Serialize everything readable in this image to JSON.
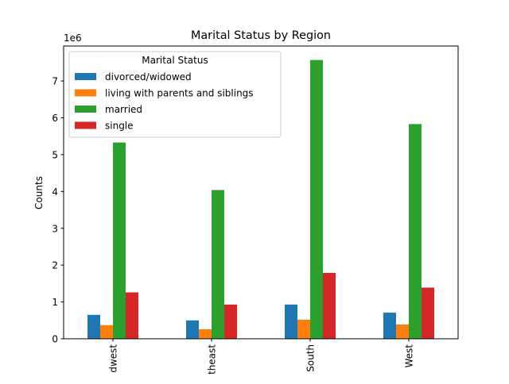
{
  "chart_data": {
    "type": "bar",
    "title": "Marital Status by Region",
    "xlabel": "",
    "ylabel": "Counts",
    "y_multiplier_label": "1e6",
    "categories": [
      "Midwest",
      "Northeast",
      "South",
      "West"
    ],
    "visible_tick_labels": [
      "dwest",
      "theast",
      "South",
      "West"
    ],
    "yticks": [
      0,
      1,
      2,
      3,
      4,
      5,
      6,
      7
    ],
    "ytick_labels": [
      "0",
      "1",
      "2",
      "3",
      "4",
      "5",
      "6",
      "7"
    ],
    "ylim": [
      0,
      7.95
    ],
    "legend": {
      "title": "Marital Status",
      "placement": "upper-left"
    },
    "grid": false,
    "series": [
      {
        "name": "divorced/widowed",
        "color": "#1f77b4",
        "values": [
          0.65,
          0.5,
          0.93,
          0.71
        ]
      },
      {
        "name": "living with parents and siblings",
        "color": "#ff7f0e",
        "values": [
          0.37,
          0.26,
          0.52,
          0.39
        ]
      },
      {
        "name": "married",
        "color": "#2ca02c",
        "values": [
          5.33,
          4.04,
          7.57,
          5.83
        ]
      },
      {
        "name": "single",
        "color": "#d62728",
        "values": [
          1.26,
          0.93,
          1.79,
          1.39
        ]
      }
    ]
  }
}
